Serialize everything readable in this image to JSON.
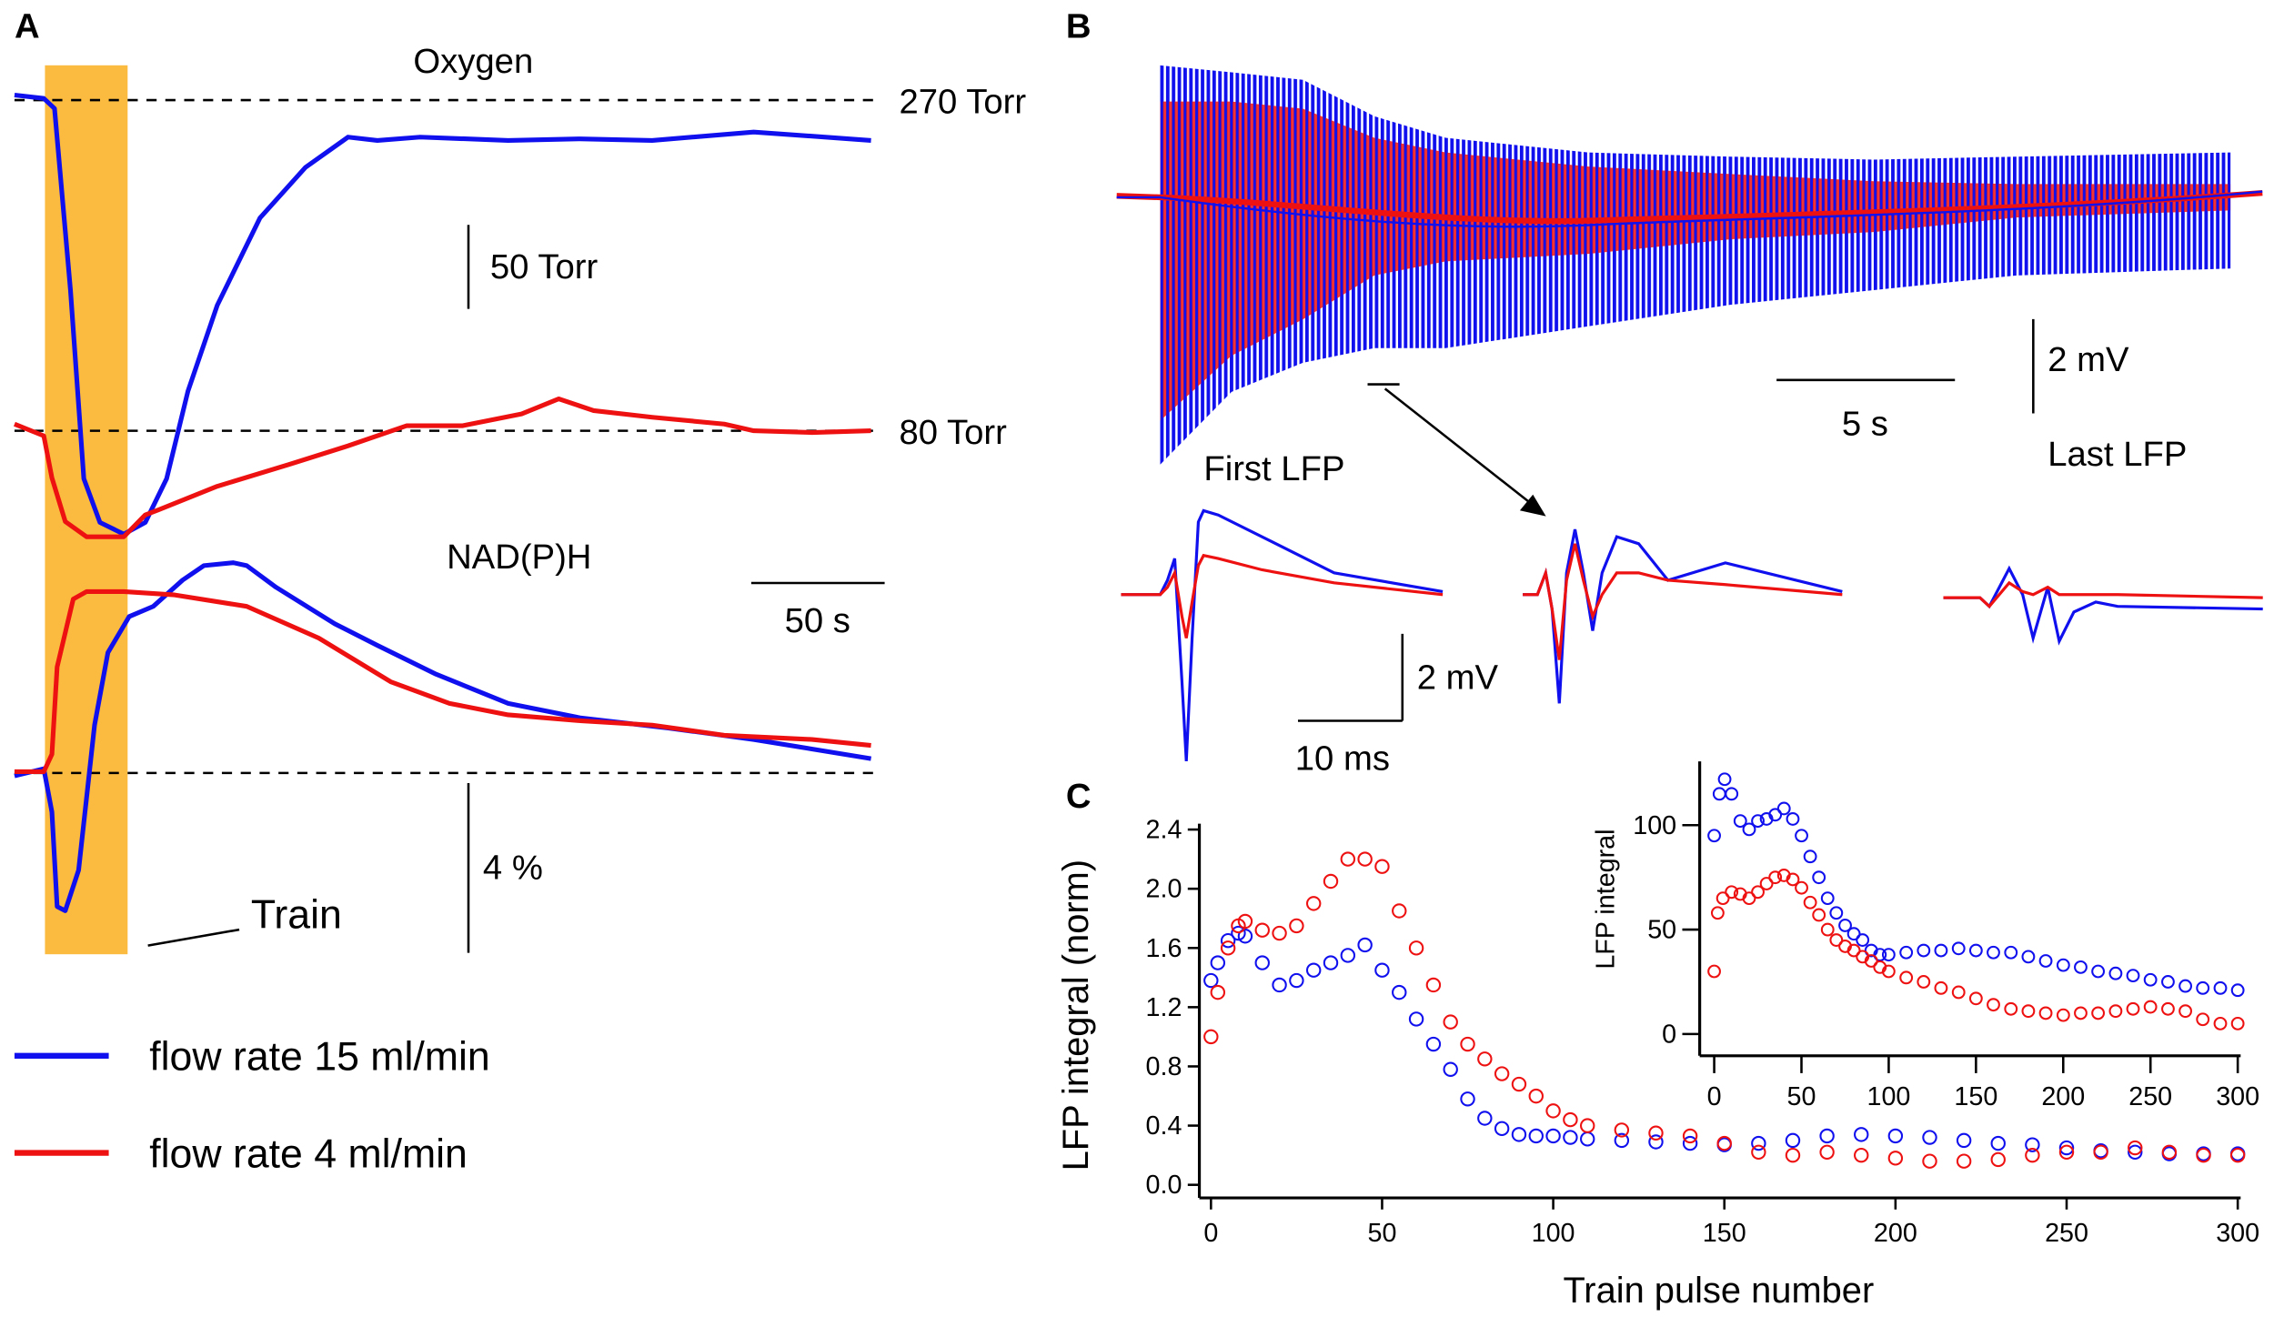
{
  "panels": {
    "a": "A",
    "b": "B",
    "c": "C"
  },
  "colors": {
    "blue": "#1010ee",
    "red": "#ee1111",
    "train": "#fbbb40"
  },
  "panel_a": {
    "oxygen_label": "Oxygen",
    "nadph_label": "NAD(P)H",
    "ref_270": "270 Torr",
    "ref_80": "80 Torr",
    "scale_torr": "50 Torr",
    "scale_time": "50 s",
    "scale_pct": "4 %",
    "train_label": "Train"
  },
  "legend": [
    {
      "label": "flow rate 15 ml/min",
      "color": "#1010ee"
    },
    {
      "label": "flow rate 4 ml/min",
      "color": "#ee1111"
    }
  ],
  "panel_b": {
    "scale_time": "5 s",
    "scale_mv": "2 mV",
    "first_lfp": "First LFP",
    "last_lfp": "Last LFP",
    "lfp_scale_mv": "2 mV",
    "lfp_scale_ms": "10 ms"
  },
  "chart_data": [
    {
      "type": "line",
      "panel": "A",
      "title": "Oxygen",
      "units": {
        "x": "s",
        "y": "Torr"
      },
      "reference_levels": [
        270,
        80
      ],
      "train_interval_s": [
        11,
        43
      ],
      "series": [
        {
          "name": "flow rate 15 ml/min",
          "color": "#1010ee",
          "ref": 270,
          "t": [
            0,
            11,
            15,
            21,
            26,
            32,
            41,
            49,
            57,
            65,
            76,
            92,
            109,
            125,
            136,
            152,
            185,
            212,
            239,
            277,
            321
          ],
          "y": [
            273,
            271,
            265,
            157,
            45,
            19,
            12,
            19,
            45,
            97,
            148,
            200,
            230,
            248,
            246,
            248,
            246,
            247,
            246,
            251,
            246
          ]
        },
        {
          "name": "flow rate 4 ml/min",
          "color": "#ee1111",
          "ref": 80,
          "t": [
            0,
            11,
            14,
            19,
            27,
            41,
            49,
            54,
            76,
            103,
            125,
            147,
            168,
            190,
            204,
            217,
            239,
            266,
            277,
            299,
            321
          ],
          "y": [
            84,
            77,
            52,
            26,
            17,
            17,
            30,
            33,
            47,
            60,
            71,
            83,
            83,
            90,
            99,
            92,
            88,
            84,
            80,
            79,
            80
          ]
        }
      ]
    },
    {
      "type": "line",
      "panel": "A",
      "title": "NAD(P)H",
      "units": {
        "x": "s",
        "y": "%"
      },
      "series": [
        {
          "name": "flow rate 15 ml/min",
          "color": "#1010ee",
          "t": [
            0,
            11,
            14,
            16,
            19,
            24,
            30,
            35,
            43,
            52,
            63,
            71,
            82,
            87,
            98,
            120,
            136,
            158,
            185,
            212,
            245,
            277,
            321
          ],
          "y": [
            -0.07,
            0.1,
            -0.92,
            -3.15,
            -3.25,
            -2.29,
            1.13,
            2.84,
            3.69,
            3.93,
            4.55,
            4.89,
            4.96,
            4.89,
            4.38,
            3.52,
            3.01,
            2.33,
            1.64,
            1.3,
            1.06,
            0.79,
            0.34
          ]
        },
        {
          "name": "flow rate 4 ml/min",
          "color": "#ee1111",
          "t": [
            0,
            11,
            14,
            16,
            22,
            27,
            41,
            60,
            87,
            114,
            141,
            163,
            185,
            212,
            239,
            266,
            299,
            321
          ],
          "y": [
            0.03,
            0.03,
            0.44,
            2.5,
            4.1,
            4.28,
            4.28,
            4.2,
            3.93,
            3.18,
            2.15,
            1.64,
            1.37,
            1.23,
            1.13,
            0.89,
            0.79,
            0.65
          ]
        }
      ]
    },
    {
      "type": "area",
      "panel": "B",
      "units": {
        "x": "s",
        "y": "mV"
      },
      "series": [
        {
          "name": "flow rate 15 ml/min",
          "color": "#1010ee",
          "t": [
            0,
            2,
            4,
            6,
            8,
            12,
            16,
            20,
            24,
            30
          ],
          "upper": [
            2.77,
            2.62,
            2.46,
            1.69,
            1.23,
            0.92,
            0.83,
            0.77,
            0.83,
            0.92
          ],
          "lower": [
            -5.7,
            -4.16,
            -3.54,
            -3.23,
            -3.23,
            -2.77,
            -2.31,
            -2.0,
            -1.69,
            -1.54
          ]
        },
        {
          "name": "flow rate 4 ml/min",
          "color": "#ee1111",
          "t": [
            0,
            2,
            4,
            6,
            8,
            12,
            16,
            20,
            24,
            30
          ],
          "upper": [
            2.0,
            2.0,
            1.85,
            1.23,
            0.92,
            0.62,
            0.46,
            0.31,
            0.25,
            0.25
          ],
          "lower": [
            -4.77,
            -3.39,
            -2.62,
            -1.69,
            -1.39,
            -1.23,
            -0.92,
            -0.77,
            -0.46,
            -0.31
          ]
        }
      ]
    },
    {
      "type": "line",
      "panel": "B",
      "units": {
        "x": "ms",
        "y": "mV"
      },
      "traces": [
        {
          "label": "First LFP",
          "t": [
            0,
            3.75,
            4.44,
            5.14,
            5.83,
            6.25,
            6.8,
            7.4,
            7.9,
            9.3,
            13.5,
            20.4,
            30.8
          ],
          "blue": [
            0,
            0,
            0.33,
            0.83,
            -2.0,
            -3.83,
            -1.0,
            1.67,
            1.93,
            1.83,
            1.33,
            0.5,
            0.07
          ],
          "red": [
            0,
            0,
            0.17,
            0.5,
            -0.5,
            -1.0,
            -0.17,
            0.67,
            0.9,
            0.83,
            0.57,
            0.27,
            0
          ]
        },
        {
          "label": "",
          "t": [
            0,
            1.4,
            2.2,
            2.8,
            3.5,
            4.2,
            5,
            5.8,
            6.7,
            7.6,
            9,
            11.1,
            13.9,
            19.4,
            30.6
          ],
          "blue": [
            0,
            0,
            0.5,
            -0.33,
            -2.5,
            0.5,
            1.5,
            0.5,
            -0.83,
            0.5,
            1.33,
            1.17,
            0.33,
            0.73,
            0.07
          ],
          "red": [
            0,
            0,
            0.5,
            -0.33,
            -1.5,
            0.33,
            1.17,
            0.33,
            -0.5,
            0,
            0.5,
            0.5,
            0.33,
            0.23,
            0
          ]
        },
        {
          "label": "Last LFP",
          "t": [
            0,
            3.5,
            4.4,
            6.3,
            7.6,
            8.6,
            10,
            11.1,
            12.5,
            14.6,
            16.7,
            30.6
          ],
          "blue": [
            -0.07,
            -0.07,
            -0.27,
            0.6,
            0,
            -1.0,
            0.17,
            -1.07,
            -0.4,
            -0.17,
            -0.27,
            -0.33
          ],
          "red": [
            -0.07,
            -0.07,
            -0.27,
            0.27,
            0.07,
            0,
            0.17,
            0,
            0,
            0,
            0,
            -0.07
          ]
        }
      ]
    },
    {
      "type": "scatter",
      "panel": "C",
      "xlabel": "Train pulse number",
      "ylabel": "LFP integral (norm)",
      "xlim": [
        0,
        300
      ],
      "ylim": [
        0,
        2.4
      ],
      "xticks": [
        0,
        50,
        100,
        150,
        200,
        250,
        300
      ],
      "yticks": [
        "0.0",
        "0.4",
        "0.8",
        "1.2",
        "1.6",
        "2.0",
        "2.4"
      ],
      "series": [
        {
          "name": "flow rate 15 ml/min",
          "color": "#1010ee",
          "x": [
            0,
            2,
            5,
            8,
            10,
            15,
            20,
            25,
            30,
            35,
            40,
            45,
            50,
            55,
            60,
            65,
            70,
            75,
            80,
            85,
            90,
            95,
            100,
            105,
            110,
            120,
            130,
            140,
            150,
            160,
            170,
            180,
            190,
            200,
            210,
            220,
            230,
            240,
            250,
            260,
            270,
            280,
            290,
            300
          ],
          "y": [
            1.38,
            1.5,
            1.65,
            1.7,
            1.68,
            1.5,
            1.35,
            1.38,
            1.45,
            1.5,
            1.55,
            1.62,
            1.45,
            1.3,
            1.12,
            0.95,
            0.78,
            0.58,
            0.45,
            0.38,
            0.34,
            0.33,
            0.33,
            0.32,
            0.31,
            0.3,
            0.29,
            0.28,
            0.27,
            0.28,
            0.3,
            0.33,
            0.34,
            0.33,
            0.32,
            0.3,
            0.28,
            0.27,
            0.25,
            0.23,
            0.22,
            0.21,
            0.21,
            0.21
          ]
        },
        {
          "name": "flow rate 4 ml/min",
          "color": "#ee1111",
          "x": [
            0,
            2,
            5,
            8,
            10,
            15,
            20,
            25,
            30,
            35,
            40,
            45,
            50,
            55,
            60,
            65,
            70,
            75,
            80,
            85,
            90,
            95,
            100,
            105,
            110,
            120,
            130,
            140,
            150,
            160,
            170,
            180,
            190,
            200,
            210,
            220,
            230,
            240,
            250,
            260,
            270,
            280,
            290,
            300
          ],
          "y": [
            1.0,
            1.3,
            1.6,
            1.75,
            1.78,
            1.72,
            1.7,
            1.75,
            1.9,
            2.05,
            2.2,
            2.2,
            2.15,
            1.85,
            1.6,
            1.35,
            1.1,
            0.95,
            0.85,
            0.75,
            0.68,
            0.6,
            0.5,
            0.44,
            0.4,
            0.37,
            0.35,
            0.33,
            0.28,
            0.22,
            0.2,
            0.22,
            0.2,
            0.18,
            0.16,
            0.16,
            0.17,
            0.2,
            0.22,
            0.22,
            0.25,
            0.22,
            0.2,
            0.2
          ]
        }
      ]
    },
    {
      "type": "scatter",
      "panel": "C-inset",
      "xlabel": "",
      "ylabel": "LFP integral",
      "xlim": [
        0,
        300
      ],
      "ylim": [
        0,
        130
      ],
      "xticks": [
        0,
        50,
        100,
        150,
        200,
        250,
        300
      ],
      "yticks": [
        "0",
        "50",
        "100"
      ],
      "series": [
        {
          "name": "flow rate 15 ml/min",
          "color": "#1010ee",
          "x": [
            0,
            3,
            6,
            10,
            15,
            20,
            25,
            30,
            35,
            40,
            45,
            50,
            55,
            60,
            65,
            70,
            75,
            80,
            85,
            90,
            95,
            100,
            110,
            120,
            130,
            140,
            150,
            160,
            170,
            180,
            190,
            200,
            210,
            220,
            230,
            240,
            250,
            260,
            270,
            280,
            290,
            300
          ],
          "y": [
            95,
            115,
            122,
            115,
            102,
            98,
            102,
            103,
            105,
            108,
            103,
            95,
            85,
            75,
            65,
            58,
            52,
            48,
            45,
            40,
            38,
            38,
            39,
            40,
            40,
            41,
            40,
            39,
            39,
            37,
            35,
            33,
            32,
            30,
            29,
            28,
            26,
            25,
            23,
            22,
            22,
            21
          ]
        },
        {
          "name": "flow rate 4 ml/min",
          "color": "#ee1111",
          "x": [
            0,
            2,
            5,
            10,
            15,
            20,
            25,
            30,
            35,
            40,
            45,
            50,
            55,
            60,
            65,
            70,
            75,
            80,
            85,
            90,
            95,
            100,
            110,
            120,
            130,
            140,
            150,
            160,
            170,
            180,
            190,
            200,
            210,
            220,
            230,
            240,
            250,
            260,
            270,
            280,
            290,
            300
          ],
          "y": [
            30,
            58,
            65,
            68,
            67,
            65,
            68,
            72,
            75,
            76,
            74,
            70,
            63,
            57,
            50,
            45,
            42,
            40,
            37,
            35,
            32,
            30,
            27,
            25,
            22,
            20,
            17,
            14,
            12,
            11,
            10,
            9,
            10,
            10,
            11,
            12,
            13,
            12,
            11,
            7,
            5,
            5
          ]
        }
      ]
    }
  ]
}
